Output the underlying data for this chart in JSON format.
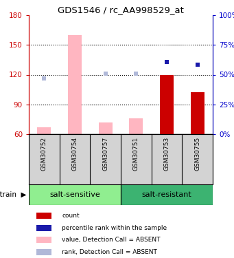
{
  "title": "GDS1546 / rc_AA998529_at",
  "samples": [
    "GSM30752",
    "GSM30754",
    "GSM30757",
    "GSM30751",
    "GSM30753",
    "GSM30755"
  ],
  "ylim_left": [
    60,
    180
  ],
  "ylim_right": [
    0,
    100
  ],
  "yticks_left": [
    60,
    90,
    120,
    150,
    180
  ],
  "yticks_right": [
    0,
    25,
    50,
    75,
    100
  ],
  "ytick_labels_right": [
    "0%",
    "25%",
    "50%",
    "75%",
    "100%"
  ],
  "bar_values_pink": [
    67,
    160,
    72,
    76,
    null,
    null
  ],
  "bar_values_red": [
    null,
    null,
    null,
    null,
    120,
    102
  ],
  "dot_values_blue_light": [
    116,
    null,
    121,
    121,
    null,
    null
  ],
  "dot_values_blue_dark": [
    null,
    null,
    null,
    null,
    133,
    130
  ],
  "bar_color_pink": "#ffb6c1",
  "bar_color_red": "#cc0000",
  "dot_color_light_blue": "#b0b8d8",
  "dot_color_dark_blue": "#1a1aaa",
  "background_plot": "white",
  "background_table": "#d3d3d3",
  "background_group_ss": "#90ee90",
  "background_group_sr": "#3cb371",
  "legend_items": [
    {
      "color": "#cc0000",
      "label": "count"
    },
    {
      "color": "#1a1aaa",
      "label": "percentile rank within the sample"
    },
    {
      "color": "#ffb6c1",
      "label": "value, Detection Call = ABSENT"
    },
    {
      "color": "#b0b8d8",
      "label": "rank, Detection Call = ABSENT"
    }
  ],
  "left_axis_color": "#cc0000",
  "right_axis_color": "#0000cc"
}
